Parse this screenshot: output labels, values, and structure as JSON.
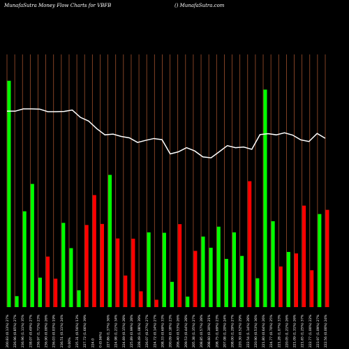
{
  "header": {
    "left": "MunafaSutra  Money Flow  Charts for VBFB",
    "right": "() MunafaSutra.com"
  },
  "chart_data": {
    "type": "bar",
    "title": "Money Flow Charts for VBFB",
    "x_labels": [
      "200.83 (0.13%) 27%",
      "226.96 (0.85%) 27%",
      "236.96 (1.11%) 35%",
      "238.07 (0.49%) 27%",
      "236.97 (1.71%) 23%",
      "236.90 (0.00%) 26%",
      "236.03 (0.03%) 19%",
      "236.51 (0.11%) 24%",
      "0.00%",
      "235.31 (0.56%) 13%",
      "227.72 (1.66%) 39%",
      "224.0",
      "0 (0.96%)",
      "227.86 (1.37%) 36%",
      "224.98 (1.21%) 34%",
      "224.69 (0.15%) 28%",
      "225.89 (0.99%) 28%",
      "228.49 (1.08%) 39%",
      "226.07 (0.27%) 27%",
      "224.72 (0.14%) 27%",
      "208.33 (0.69%) 33%",
      "200.09 (0.18%) 23%",
      "206.40 (0.53%) 26%",
      "209.53 (0.44%) 28%",
      "205.38 (1.35%) 27%",
      "208.85 (0.57%) 28%",
      "208.60 (0.30%) 21%",
      "208.75 (1.69%) 23%",
      "207.08 (1.20%) 24%",
      "208.00 (1.29%) 27%",
      "220.30 (0.52%) 29%",
      "222.54 (1.14%) 28%",
      "220.90 (0.53%) 36%",
      "221.80 (0.64%) 26%",
      "224.77 (0.70%) 25%",
      "221.28 (1.07%) 33%",
      "220.05 (1.21%) 26%",
      "221.09 (1.31%) 26%",
      "221.65 (1.25%) 37%",
      "222.77 (1.00%) 22%",
      "223.97 (1.09%) 27%",
      "222.56 (0.00%) 24%"
    ],
    "bar_values": [
      1075,
      52,
      455,
      585,
      140,
      240,
      135,
      400,
      280,
      80,
      390,
      532,
      395,
      628,
      326,
      150,
      325,
      75,
      355,
      35,
      353,
      120,
      394,
      50,
      267,
      335,
      282,
      382,
      229,
      355,
      243,
      598,
      137,
      1033,
      408,
      193,
      262,
      255,
      482,
      175,
      442,
      462
    ],
    "bar_colors": [
      "#00ff00",
      "#00ff00",
      "#00ff00",
      "#00ff00",
      "#00ff00",
      "#ff0000",
      "#ff0000",
      "#00ff00",
      "#00ff00",
      "#00ff00",
      "#ff0000",
      "#ff0000",
      "#ff0000",
      "#00ff00",
      "#ff0000",
      "#ff0000",
      "#ff0000",
      "#ff0000",
      "#00ff00",
      "#ff0000",
      "#00ff00",
      "#00ff00",
      "#ff0000",
      "#00ff00",
      "#ff0000",
      "#00ff00",
      "#00ff00",
      "#00ff00",
      "#00ff00",
      "#00ff00",
      "#00ff00",
      "#ff0000",
      "#00ff00",
      "#00ff00",
      "#00ff00",
      "#ff0000",
      "#00ff00",
      "#ff0000",
      "#ff0000",
      "#ff0000",
      "#00ff00",
      "#ff0000"
    ],
    "bar_max": 1200,
    "price_line": [
      235.3,
      235.3,
      236.3,
      236.3,
      236.2,
      235.1,
      235.1,
      235.2,
      235.8,
      232.6,
      231.0,
      227.7,
      225.0,
      225.3,
      224.3,
      223.7,
      221.7,
      222.6,
      223.4,
      222.9,
      216.7,
      217.6,
      219.4,
      218.0,
      215.4,
      215.0,
      217.6,
      220.3,
      219.4,
      219.7,
      218.7,
      225.1,
      225.5,
      225.0,
      225.9,
      224.9,
      222.8,
      222.1,
      225.6,
      223.5
    ],
    "price_range": [
      150,
      260
    ],
    "colors": {
      "background": "#000000",
      "gridline": "#a0522d",
      "price_line": "#ffffff",
      "up_bar": "#00ff00",
      "down_bar": "#ff0000"
    }
  }
}
